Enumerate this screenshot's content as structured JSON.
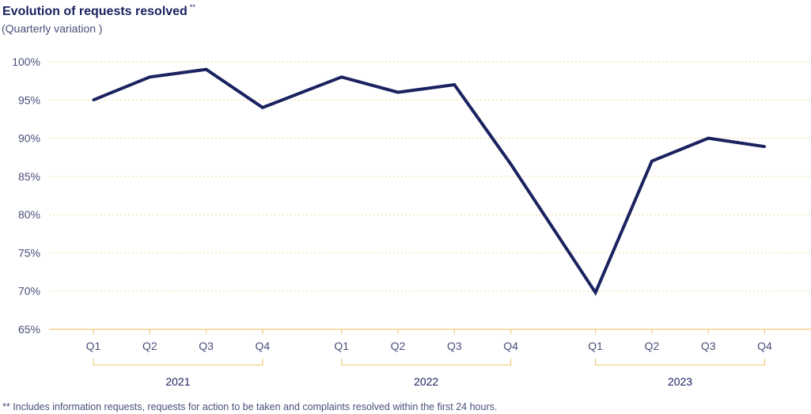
{
  "chart_data": {
    "type": "line",
    "title": "Evolution of requests resolved",
    "title_marker": "**",
    "subtitle": "(Quarterly variation )",
    "ylim": [
      65,
      100
    ],
    "yticks": [
      "100%",
      "95%",
      "90%",
      "85%",
      "80%",
      "75%",
      "70%",
      "65%"
    ],
    "ytick_values": [
      100,
      95,
      90,
      85,
      80,
      75,
      70,
      65
    ],
    "categories": [
      "Q1",
      "Q2",
      "Q3",
      "Q4",
      "Q1",
      "Q2",
      "Q3",
      "Q4",
      "Q1",
      "Q2",
      "Q3",
      "Q4"
    ],
    "series": [
      {
        "name": "Requests resolved",
        "color": "#1a2260",
        "points": [
          {
            "x": 0,
            "y": 95
          },
          {
            "x": 1,
            "y": 98
          },
          {
            "x": 2,
            "y": 99
          },
          {
            "x": 3,
            "y": 94
          },
          {
            "x": 4.4,
            "y": 98
          },
          {
            "x": 5.4,
            "y": 96
          },
          {
            "x": 6.4,
            "y": 97
          },
          {
            "x": 7.4,
            "y": 86.6
          },
          {
            "x": 8.9,
            "y": 69.8
          },
          {
            "x": 9.9,
            "y": 87
          },
          {
            "x": 10.9,
            "y": 90
          },
          {
            "x": 11.9,
            "y": 88.9
          }
        ]
      }
    ],
    "groups": [
      {
        "label": "2021",
        "quarters": [
          "Q1",
          "Q2",
          "Q3",
          "Q4"
        ],
        "x": [
          0,
          1,
          2,
          3
        ]
      },
      {
        "label": "2022",
        "quarters": [
          "Q1",
          "Q2",
          "Q3",
          "Q4"
        ],
        "x": [
          4.4,
          5.4,
          6.4,
          7.4
        ]
      },
      {
        "label": "2023",
        "quarters": [
          "Q1",
          "Q2",
          "Q3",
          "Q4"
        ],
        "x": [
          8.9,
          9.9,
          10.9,
          11.9
        ]
      }
    ],
    "grid": true,
    "grid_color": "#f0c878",
    "axis_color": "#f0c878",
    "bracket_color": "#e8c060",
    "footnote": "** Includes information requests, requests for action to be taken and complaints resolved within the first 24 hours."
  }
}
